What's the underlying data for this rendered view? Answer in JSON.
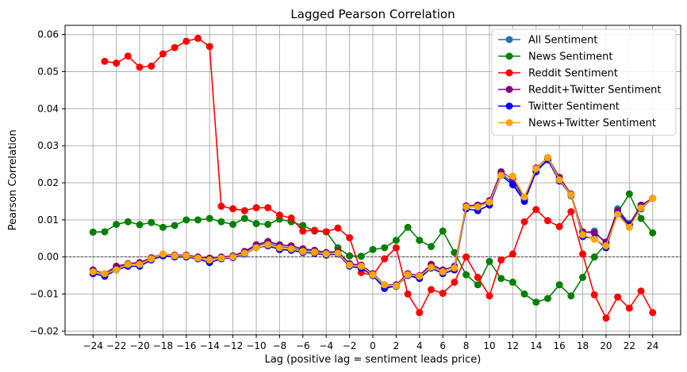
{
  "chart_data": {
    "type": "line",
    "title": "Lagged Pearson Correlation",
    "xlabel": "Lag (positive lag = sentiment leads price)",
    "ylabel": "Pearson Correlation",
    "xlim": [
      -26.4,
      26.4
    ],
    "ylim": [
      -0.021,
      0.0625
    ],
    "x_ticks": [
      -24,
      -22,
      -20,
      -18,
      -16,
      -14,
      -12,
      -10,
      -8,
      -6,
      -4,
      -2,
      0,
      2,
      4,
      6,
      8,
      10,
      12,
      14,
      16,
      18,
      20,
      22,
      24
    ],
    "x_tick_labels": [
      "−24",
      "−22",
      "−20",
      "−18",
      "−16",
      "−14",
      "−12",
      "−10",
      "−8",
      "−6",
      "−4",
      "−2",
      "0",
      "2",
      "4",
      "6",
      "8",
      "10",
      "12",
      "14",
      "16",
      "18",
      "20",
      "22",
      "24"
    ],
    "y_ticks": [
      -0.02,
      -0.01,
      0.0,
      0.01,
      0.02,
      0.03,
      0.04,
      0.05,
      0.06
    ],
    "y_tick_labels": [
      "−0.02",
      "−0.01",
      "0.00",
      "0.01",
      "0.02",
      "0.03",
      "0.04",
      "0.05",
      "0.06"
    ],
    "grid": true,
    "zero_line": true,
    "legend_position": "top-right",
    "x": [
      -24,
      -23,
      -22,
      -21,
      -20,
      -19,
      -18,
      -17,
      -16,
      -15,
      -14,
      -13,
      -12,
      -11,
      -10,
      -9,
      -8,
      -7,
      -6,
      -5,
      -4,
      -3,
      -2,
      -1,
      0,
      1,
      2,
      3,
      4,
      5,
      6,
      7,
      8,
      9,
      10,
      11,
      12,
      13,
      14,
      15,
      16,
      17,
      18,
      19,
      20,
      21,
      22,
      23,
      24
    ],
    "series": [
      {
        "name": "All Sentiment",
        "color": "#1f77b4",
        "values": [
          -0.004,
          -0.0048,
          -0.003,
          -0.002,
          -0.002,
          -0.0005,
          0.0005,
          0.0002,
          0.0003,
          -0.0003,
          -0.0008,
          -0.0002,
          0.0001,
          0.0012,
          0.003,
          0.0038,
          0.0028,
          0.0025,
          0.0018,
          0.0015,
          0.001,
          0.0012,
          -0.002,
          -0.0025,
          -0.0048,
          -0.008,
          -0.008,
          -0.0048,
          -0.0055,
          -0.0025,
          -0.004,
          -0.003,
          0.0135,
          0.0135,
          0.015,
          0.0225,
          0.02,
          0.0155,
          0.0235,
          0.0265,
          0.021,
          0.0165,
          0.0065,
          0.007,
          0.0035,
          0.013,
          0.009,
          0.0135,
          0.0158
        ]
      },
      {
        "name": "News Sentiment",
        "color": "#008000",
        "values": [
          0.0067,
          0.0068,
          0.0088,
          0.0095,
          0.0087,
          0.0093,
          0.008,
          0.0085,
          0.01,
          0.01,
          0.0104,
          0.0095,
          0.0088,
          0.0104,
          0.009,
          0.0088,
          0.0102,
          0.0095,
          0.0085,
          0.007,
          0.0068,
          0.0025,
          0.0003,
          0.0002,
          0.002,
          0.0025,
          0.0045,
          0.008,
          0.0045,
          0.0028,
          0.007,
          0.0012,
          -0.0048,
          -0.0075,
          -0.0012,
          -0.0058,
          -0.0068,
          -0.01,
          -0.0122,
          -0.0112,
          -0.0075,
          -0.0105,
          -0.0055,
          0.0,
          0.0035,
          0.012,
          0.017,
          0.0104,
          0.0065
        ]
      },
      {
        "name": "Reddit Sentiment",
        "color": "#ff0000",
        "values": [
          null,
          0.0528,
          0.0523,
          0.0542,
          0.0512,
          0.0515,
          0.0548,
          0.0565,
          0.0582,
          0.059,
          0.0568,
          0.0137,
          0.013,
          0.0125,
          0.0133,
          0.0133,
          0.0113,
          0.0105,
          0.007,
          0.0072,
          0.0068,
          0.0078,
          0.0052,
          -0.0042,
          -0.005,
          -0.0005,
          0.0025,
          -0.01,
          -0.015,
          -0.0088,
          -0.0098,
          -0.0068,
          0.0,
          -0.0055,
          -0.0105,
          -0.0008,
          0.0008,
          0.0095,
          0.0128,
          0.0098,
          0.0082,
          0.0122,
          0.0008,
          -0.0102,
          -0.0165,
          -0.0108,
          -0.0138,
          -0.0092,
          -0.015
        ]
      },
      {
        "name": "Reddit+Twitter Sentiment",
        "color": "#800080",
        "values": [
          -0.0035,
          -0.0045,
          -0.0025,
          -0.0018,
          -0.0015,
          -0.0002,
          0.0008,
          0.0005,
          0.0005,
          0.0,
          -0.0003,
          0.0,
          0.0003,
          0.0015,
          0.0033,
          0.0042,
          0.0033,
          0.003,
          0.0022,
          0.0018,
          0.0012,
          0.0015,
          -0.0018,
          -0.0022,
          -0.0045,
          -0.0075,
          -0.0075,
          -0.0045,
          -0.005,
          -0.002,
          -0.0035,
          -0.0025,
          0.0138,
          0.014,
          0.0152,
          0.023,
          0.021,
          0.0158,
          0.024,
          0.0268,
          0.0215,
          0.017,
          0.0068,
          0.0065,
          0.004,
          0.0125,
          0.0088,
          0.014,
          0.0158
        ]
      },
      {
        "name": "Twitter Sentiment",
        "color": "#0000ff",
        "values": [
          -0.0045,
          -0.0052,
          -0.0035,
          -0.0025,
          -0.0025,
          -0.0008,
          0.0003,
          0.0,
          0.0,
          -0.0005,
          -0.0015,
          -0.0005,
          -0.0002,
          0.0008,
          0.0025,
          0.003,
          0.002,
          0.0018,
          0.0012,
          0.001,
          0.0005,
          0.0008,
          -0.0025,
          -0.003,
          -0.005,
          -0.0085,
          -0.0078,
          -0.005,
          -0.0058,
          -0.003,
          -0.0045,
          -0.0035,
          0.013,
          0.0125,
          0.014,
          0.022,
          0.0195,
          0.015,
          0.023,
          0.0262,
          0.0205,
          0.0168,
          0.0055,
          0.005,
          0.0025,
          0.0118,
          0.0085,
          0.013,
          0.0158
        ]
      },
      {
        "name": "News+Twitter Sentiment",
        "color": "#ffa500",
        "values": [
          -0.004,
          -0.0045,
          -0.0035,
          -0.002,
          -0.002,
          -0.0005,
          0.0008,
          0.0003,
          0.0003,
          -0.0003,
          -0.0008,
          -0.0003,
          0.0,
          0.001,
          0.0025,
          0.0033,
          0.0025,
          0.0022,
          0.0015,
          0.0013,
          0.0008,
          0.001,
          -0.0022,
          -0.0025,
          -0.0048,
          -0.0075,
          -0.0078,
          -0.0048,
          -0.0052,
          -0.0028,
          -0.004,
          -0.003,
          0.0135,
          0.0135,
          0.0148,
          0.022,
          0.0218,
          0.0162,
          0.0238,
          0.0268,
          0.0208,
          0.0168,
          0.006,
          0.0048,
          0.003,
          0.0115,
          0.008,
          0.0132,
          0.0158
        ]
      }
    ]
  }
}
